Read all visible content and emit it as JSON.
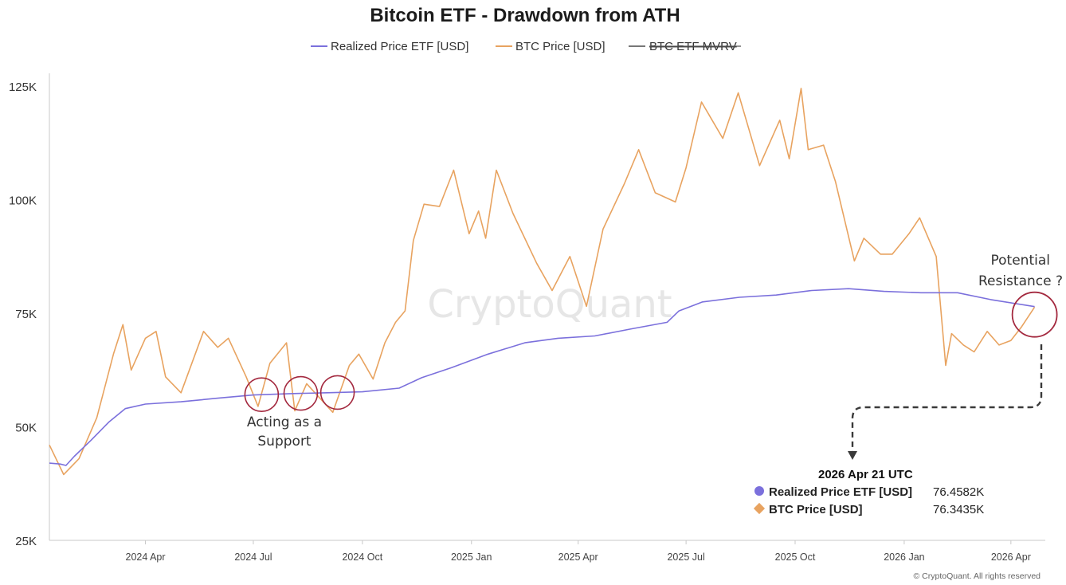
{
  "chart_data": {
    "type": "line",
    "title": "Bitcoin ETF - Drawdown from ATH",
    "watermark": "CryptoQuant",
    "copyright": "© CryptoQuant. All rights reserved",
    "y_ticks": [
      {
        "value": 25000,
        "label": "25K"
      },
      {
        "value": 50000,
        "label": "50K"
      },
      {
        "value": 75000,
        "label": "75K"
      },
      {
        "value": 100000,
        "label": "100K"
      },
      {
        "value": 125000,
        "label": "125K"
      }
    ],
    "ylim": [
      25000,
      125000
    ],
    "xlim": [
      "2024-01-11",
      "2026-04-30"
    ],
    "x_ticks": [
      {
        "date": "2024-04-01",
        "label": "2024 Apr"
      },
      {
        "date": "2024-07-01",
        "label": "2024 Jul"
      },
      {
        "date": "2024-10-01",
        "label": "2024 Oct"
      },
      {
        "date": "2025-01-01",
        "label": "2025 Jan"
      },
      {
        "date": "2025-04-01",
        "label": "2025 Apr"
      },
      {
        "date": "2025-07-01",
        "label": "2025 Jul"
      },
      {
        "date": "2025-10-01",
        "label": "2025 Oct"
      },
      {
        "date": "2026-01-01",
        "label": "2026 Jan"
      },
      {
        "date": "2026-04-01",
        "label": "2026 Apr"
      }
    ],
    "legend": [
      {
        "name": "Realized Price ETF [USD]",
        "color": "#7b70dc",
        "hidden": false
      },
      {
        "name": "BTC Price [USD]",
        "color": "#e8a360",
        "hidden": false
      },
      {
        "name": "BTC ETF MVRV",
        "color": "#777777",
        "hidden": true
      }
    ],
    "series": [
      {
        "name": "Realized Price ETF [USD]",
        "color": "#7b70dc",
        "points": [
          [
            "2024-01-11",
            42000
          ],
          [
            "2024-01-20",
            41800
          ],
          [
            "2024-01-25",
            41500
          ],
          [
            "2024-02-01",
            43500
          ],
          [
            "2024-02-15",
            47000
          ],
          [
            "2024-03-01",
            51000
          ],
          [
            "2024-03-15",
            54000
          ],
          [
            "2024-04-01",
            55000
          ],
          [
            "2024-05-01",
            55500
          ],
          [
            "2024-06-01",
            56300
          ],
          [
            "2024-07-01",
            57000
          ],
          [
            "2024-08-01",
            57300
          ],
          [
            "2024-09-01",
            57500
          ],
          [
            "2024-10-01",
            57700
          ],
          [
            "2024-11-01",
            58500
          ],
          [
            "2024-11-20",
            60800
          ],
          [
            "2024-12-15",
            63000
          ],
          [
            "2025-01-15",
            66000
          ],
          [
            "2025-02-15",
            68500
          ],
          [
            "2025-03-15",
            69500
          ],
          [
            "2025-04-15",
            70000
          ],
          [
            "2025-05-15",
            71500
          ],
          [
            "2025-06-15",
            73000
          ],
          [
            "2025-06-25",
            75500
          ],
          [
            "2025-07-15",
            77500
          ],
          [
            "2025-08-15",
            78500
          ],
          [
            "2025-09-15",
            79000
          ],
          [
            "2025-10-15",
            80000
          ],
          [
            "2025-11-15",
            80400
          ],
          [
            "2025-12-15",
            79800
          ],
          [
            "2026-01-15",
            79500
          ],
          [
            "2026-02-15",
            79500
          ],
          [
            "2026-03-15",
            78000
          ],
          [
            "2026-04-21",
            76458
          ]
        ]
      },
      {
        "name": "BTC Price [USD]",
        "color": "#e8a360",
        "points": [
          [
            "2024-01-11",
            46000
          ],
          [
            "2024-01-23",
            39500
          ],
          [
            "2024-02-05",
            43000
          ],
          [
            "2024-02-20",
            52000
          ],
          [
            "2024-03-05",
            66000
          ],
          [
            "2024-03-13",
            72500
          ],
          [
            "2024-03-20",
            62500
          ],
          [
            "2024-04-01",
            69500
          ],
          [
            "2024-04-10",
            71000
          ],
          [
            "2024-04-18",
            61000
          ],
          [
            "2024-05-01",
            57500
          ],
          [
            "2024-05-20",
            71000
          ],
          [
            "2024-06-01",
            67500
          ],
          [
            "2024-06-10",
            69500
          ],
          [
            "2024-06-25",
            61000
          ],
          [
            "2024-07-05",
            54500
          ],
          [
            "2024-07-15",
            64000
          ],
          [
            "2024-07-29",
            68500
          ],
          [
            "2024-08-05",
            53500
          ],
          [
            "2024-08-15",
            59500
          ],
          [
            "2024-09-06",
            53200
          ],
          [
            "2024-09-20",
            63500
          ],
          [
            "2024-09-28",
            66000
          ],
          [
            "2024-10-10",
            60500
          ],
          [
            "2024-10-20",
            68500
          ],
          [
            "2024-10-29",
            73000
          ],
          [
            "2024-11-06",
            75500
          ],
          [
            "2024-11-13",
            91000
          ],
          [
            "2024-11-22",
            99000
          ],
          [
            "2024-12-05",
            98500
          ],
          [
            "2024-12-17",
            106500
          ],
          [
            "2024-12-30",
            92500
          ],
          [
            "2025-01-07",
            97500
          ],
          [
            "2025-01-13",
            91500
          ],
          [
            "2025-01-22",
            106500
          ],
          [
            "2025-02-05",
            97000
          ],
          [
            "2025-02-25",
            86000
          ],
          [
            "2025-03-10",
            80000
          ],
          [
            "2025-03-25",
            87500
          ],
          [
            "2025-04-08",
            76500
          ],
          [
            "2025-04-22",
            93500
          ],
          [
            "2025-05-10",
            103500
          ],
          [
            "2025-05-22",
            111000
          ],
          [
            "2025-06-05",
            101500
          ],
          [
            "2025-06-22",
            99500
          ],
          [
            "2025-07-01",
            107000
          ],
          [
            "2025-07-14",
            121500
          ],
          [
            "2025-08-01",
            113500
          ],
          [
            "2025-08-14",
            123500
          ],
          [
            "2025-09-01",
            107500
          ],
          [
            "2025-09-18",
            117500
          ],
          [
            "2025-09-26",
            109000
          ],
          [
            "2025-10-06",
            124500
          ],
          [
            "2025-10-12",
            111000
          ],
          [
            "2025-10-25",
            112000
          ],
          [
            "2025-11-04",
            104000
          ],
          [
            "2025-11-20",
            86500
          ],
          [
            "2025-11-28",
            91500
          ],
          [
            "2025-12-12",
            88000
          ],
          [
            "2025-12-22",
            88000
          ],
          [
            "2026-01-05",
            92500
          ],
          [
            "2026-01-14",
            96000
          ],
          [
            "2026-01-28",
            87500
          ],
          [
            "2026-02-05",
            63500
          ],
          [
            "2026-02-10",
            70500
          ],
          [
            "2026-02-20",
            68000
          ],
          [
            "2026-03-01",
            66500
          ],
          [
            "2026-03-12",
            71000
          ],
          [
            "2026-03-22",
            68000
          ],
          [
            "2026-04-01",
            69000
          ],
          [
            "2026-04-10",
            72000
          ],
          [
            "2026-04-21",
            76343
          ]
        ]
      }
    ],
    "annotations": {
      "support_text": [
        "Acting as a",
        "Support"
      ],
      "support_circles": [
        "2024-07-08",
        "2024-08-10",
        "2024-09-10"
      ],
      "resistance_text": [
        "Potential",
        "Resistance ?"
      ],
      "resistance_circle": "2026-04-21"
    },
    "tooltip": {
      "date": "2026 Apr 21 UTC",
      "rows": [
        {
          "name": "Realized Price ETF [USD]",
          "value": "76.4582K",
          "color": "#7b70dc",
          "marker": "circle"
        },
        {
          "name": "BTC Price [USD]",
          "value": "76.3435K",
          "color": "#e8a360",
          "marker": "diamond"
        }
      ]
    }
  }
}
